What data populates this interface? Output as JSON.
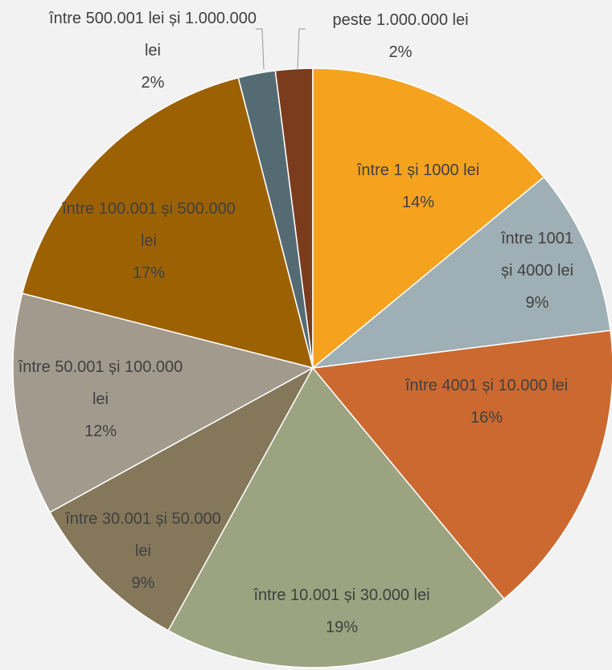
{
  "chart_data": {
    "type": "pie",
    "categories": [
      "între 1 și 1000 lei",
      "între 1001 și 4000 lei",
      "între 4001 și 10.000 lei",
      "între 10.001 și 30.000 lei",
      "între 30.001 și 50.000 lei",
      "între 50.001 și 100.000 lei",
      "între 100.001 și 500.000 lei",
      "între 500.001 lei și 1.000.000 lei",
      "peste 1.000.000 lei"
    ],
    "values": [
      14,
      9,
      16,
      19,
      9,
      12,
      17,
      2,
      2
    ],
    "value_labels": [
      "14%",
      "9%",
      "16%",
      "19%",
      "9%",
      "12%",
      "17%",
      "2%",
      "2%"
    ],
    "colors": [
      "#f5a31e",
      "#9eafb5",
      "#cb6930",
      "#9ca380",
      "#85775a",
      "#a39a8e",
      "#9c6103",
      "#556b74",
      "#7a3c1c"
    ]
  }
}
